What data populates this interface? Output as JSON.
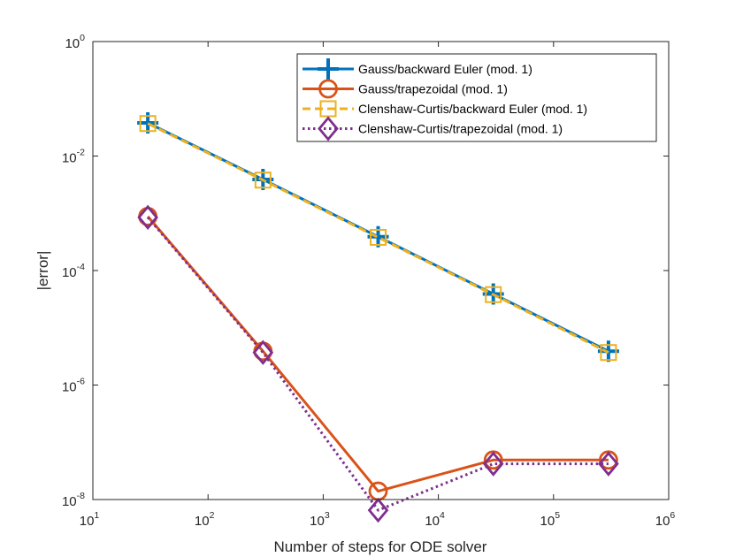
{
  "chart_data": {
    "type": "line",
    "xscale": "log",
    "yscale": "log",
    "xlabel": "Number of steps for ODE solver",
    "ylabel": "|error|",
    "xlim": [
      10,
      1000000
    ],
    "ylim": [
      1e-08,
      1
    ],
    "xticks": [
      {
        "value": 10,
        "base": "10",
        "exp": "1"
      },
      {
        "value": 100,
        "base": "10",
        "exp": "2"
      },
      {
        "value": 1000,
        "base": "10",
        "exp": "3"
      },
      {
        "value": 10000,
        "base": "10",
        "exp": "4"
      },
      {
        "value": 100000,
        "base": "10",
        "exp": "5"
      },
      {
        "value": 1000000,
        "base": "10",
        "exp": "6"
      }
    ],
    "yticks": [
      {
        "value": 1e-08,
        "base": "10",
        "exp": "-8"
      },
      {
        "value": 1e-06,
        "base": "10",
        "exp": "-6"
      },
      {
        "value": 0.0001,
        "base": "10",
        "exp": "-4"
      },
      {
        "value": 0.01,
        "base": "10",
        "exp": "-2"
      },
      {
        "value": 1,
        "base": "10",
        "exp": "0"
      }
    ],
    "x": [
      30,
      300,
      3000,
      30000,
      300000
    ],
    "legend_position": "top-right",
    "series": [
      {
        "name": "Gauss/backward Euler (mod. 1)",
        "color": "#0072BD",
        "line": "solid",
        "marker": "plus",
        "values": [
          0.038,
          0.0039,
          0.00039,
          3.9e-05,
          3.9e-06
        ]
      },
      {
        "name": "Gauss/trapezoidal (mod. 1)",
        "color": "#D95319",
        "line": "solid",
        "marker": "circle",
        "values": [
          0.00088,
          3.9e-06,
          1.4e-08,
          4.9e-08,
          4.9e-08
        ]
      },
      {
        "name": "Clenshaw-Curtis/backward Euler (mod. 1)",
        "color": "#EDB120",
        "line": "dashed",
        "marker": "square",
        "values": [
          0.037,
          0.0038,
          0.00038,
          3.8e-05,
          3.7e-06
        ]
      },
      {
        "name": "Clenshaw-Curtis/trapezoidal (mod. 1)",
        "color": "#7E2F8E",
        "line": "dotted",
        "marker": "diamond",
        "values": [
          0.00085,
          3.7e-06,
          6.5e-09,
          4.2e-08,
          4.2e-08
        ]
      }
    ]
  }
}
